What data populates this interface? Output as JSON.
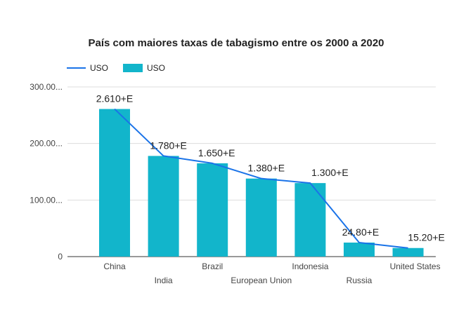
{
  "chart_data": {
    "type": "bar",
    "title": "País com maiores taxas de tabagismo entre os 2000 a 2020",
    "categories": [
      "China",
      "India",
      "Brazil",
      "European Union",
      "Indonesia",
      "Russia",
      "United States"
    ],
    "series": [
      {
        "name": "USO",
        "kind": "line",
        "color": "#1a73e8",
        "values": [
          261,
          178,
          165,
          138,
          130,
          24.8,
          15.2
        ]
      },
      {
        "name": "USO",
        "kind": "bar",
        "color": "#12b5cb",
        "values": [
          261,
          178,
          165,
          138,
          130,
          24.8,
          15.2
        ]
      }
    ],
    "data_labels": [
      "2.610+E",
      "1.780+E",
      "1.650+E",
      "1.380+E",
      "1.300+E",
      "24.80+E",
      "15.20+E"
    ],
    "y_ticks": [
      "0",
      "100.00...",
      "200.00...",
      "300.00..."
    ],
    "ylim": [
      0,
      300
    ],
    "grid": true,
    "legend_position": "top-left",
    "xlabel": "",
    "ylabel": ""
  }
}
